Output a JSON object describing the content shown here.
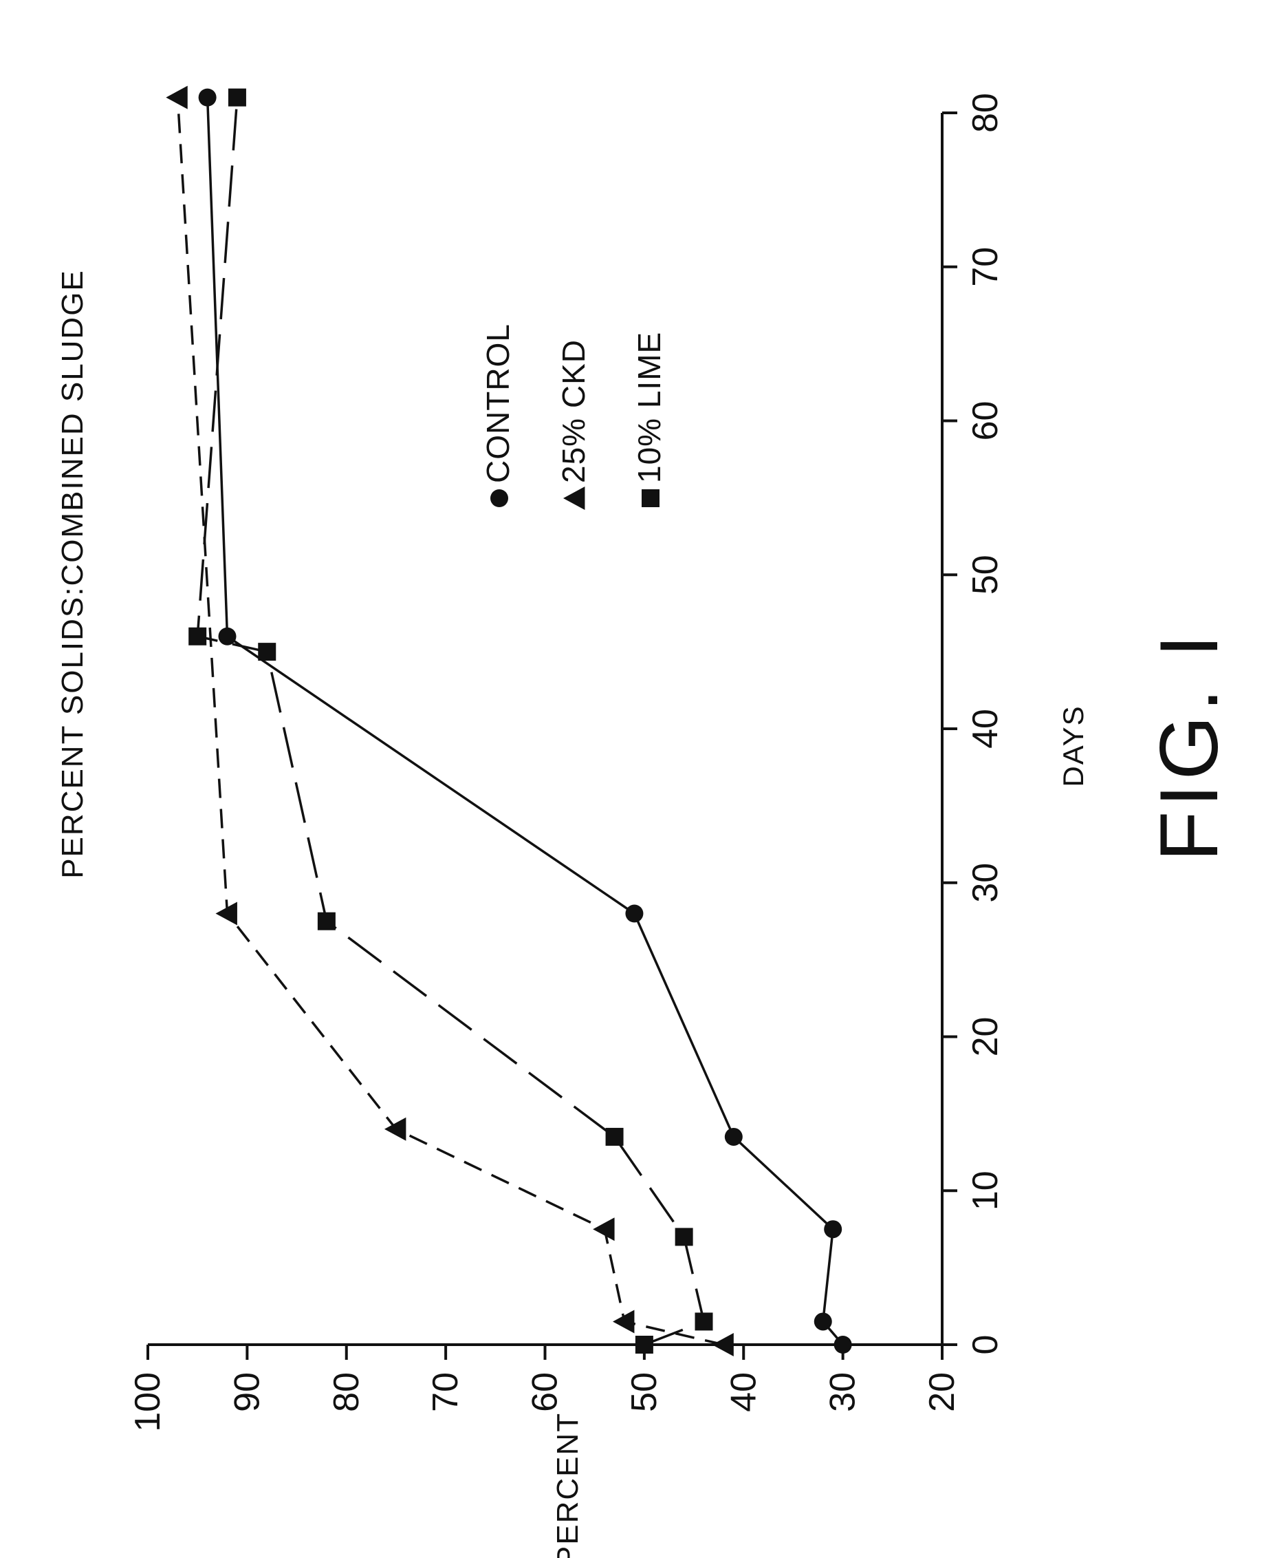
{
  "chart_data": {
    "type": "line",
    "orientation": "rotated-90-ccw",
    "title": "PERCENT SOLIDS:COMBINED SLUDGE",
    "xlabel": "DAYS",
    "ylabel": "PERCENT",
    "figure_label": "FIG. I",
    "xlim": [
      0,
      80
    ],
    "ylim": [
      20,
      100
    ],
    "x_ticks": [
      "0",
      "10",
      "20",
      "30",
      "40",
      "50",
      "60",
      "70",
      "80"
    ],
    "y_ticks": [
      "20",
      "30",
      "40",
      "50",
      "60",
      "70",
      "80",
      "90",
      "100"
    ],
    "grid": false,
    "legend_position": "inside-upper-middle",
    "series": [
      {
        "name": "CONTROL",
        "marker": "circle",
        "line": "solid",
        "x": [
          0,
          1.5,
          7.5,
          13.5,
          28,
          46,
          81
        ],
        "y": [
          30,
          32,
          31,
          41,
          51,
          92,
          94
        ]
      },
      {
        "name": "25% CKD",
        "marker": "triangle",
        "line": "dashed",
        "x": [
          0,
          1.5,
          7.5,
          14,
          28,
          81
        ],
        "y": [
          42,
          52,
          54,
          75,
          92,
          97
        ]
      },
      {
        "name": "10% LIME",
        "marker": "square",
        "line": "long-dash",
        "x": [
          0,
          1.5,
          7,
          13.5,
          27.5,
          45,
          46,
          81
        ],
        "y": [
          50,
          44,
          46,
          53,
          82,
          88,
          95,
          91
        ]
      }
    ]
  }
}
